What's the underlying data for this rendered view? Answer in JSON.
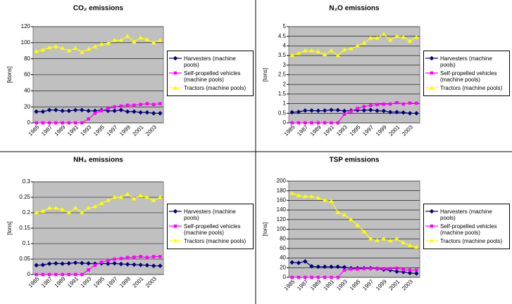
{
  "chart_data": [
    {
      "type": "line",
      "title": "CO₂ emissions",
      "ylabel": "[ktons]",
      "categories": [
        "1985",
        null,
        "1987",
        null,
        "1989",
        null,
        "1991",
        null,
        "1993",
        null,
        "1995",
        null,
        "1997",
        null,
        "1999",
        null,
        "2001",
        null,
        "2003",
        null
      ],
      "ylim": [
        0,
        120
      ],
      "yticks": [
        0,
        20,
        40,
        60,
        80,
        100,
        120
      ],
      "grid": true,
      "series": [
        {
          "name": "Harvesters (machine pools)",
          "color": "#000080",
          "marker": "diamond",
          "values": [
            14,
            14,
            16,
            16,
            15,
            15,
            16,
            16,
            15,
            15,
            16,
            15,
            15,
            16,
            14,
            14,
            13,
            13,
            12,
            12
          ]
        },
        {
          "name": "Self-propelled vehicles (machine pools)",
          "color": "#ff00ff",
          "marker": "square",
          "values": [
            0,
            0,
            0,
            0,
            0,
            0,
            0,
            0,
            5,
            12,
            15,
            18,
            20,
            21,
            22,
            22,
            23,
            24,
            23,
            24
          ]
        },
        {
          "name": "Tractors (machine pools)",
          "color": "#ffff00",
          "marker": "triangle",
          "values": [
            89,
            91,
            94,
            95,
            93,
            90,
            93,
            88,
            92,
            95,
            98,
            99,
            103,
            103,
            108,
            101,
            106,
            104,
            100,
            103
          ]
        }
      ]
    },
    {
      "type": "line",
      "title": "N₂O emissions",
      "ylabel": "[tons]",
      "categories": [
        "1985",
        null,
        "1987",
        null,
        "1989",
        null,
        "1991",
        null,
        "1993",
        null,
        "1995",
        null,
        "1997",
        null,
        "1999",
        null,
        "2001",
        null,
        "2003",
        null
      ],
      "ylim": [
        0,
        5
      ],
      "yticks": [
        0,
        0.5,
        1,
        1.5,
        2,
        2.5,
        3,
        3.5,
        4,
        4.5,
        5
      ],
      "grid": true,
      "series": [
        {
          "name": "Harvesters (machine pools)",
          "color": "#000080",
          "marker": "diamond",
          "values": [
            0.55,
            0.57,
            0.64,
            0.64,
            0.63,
            0.64,
            0.67,
            0.66,
            0.62,
            0.64,
            0.66,
            0.65,
            0.67,
            0.63,
            0.62,
            0.56,
            0.56,
            0.54,
            0.5,
            0.5
          ]
        },
        {
          "name": "Self-propelled vehicles (machine pools)",
          "color": "#ff00ff",
          "marker": "square",
          "values": [
            0,
            0,
            0,
            0,
            0,
            0,
            0,
            0,
            0.45,
            0.6,
            0.75,
            0.85,
            0.9,
            0.95,
            0.97,
            0.98,
            1.05,
            0.98,
            1.03,
            1.02
          ]
        },
        {
          "name": "Tractors (machine pools)",
          "color": "#ffff00",
          "marker": "triangle",
          "values": [
            3.5,
            3.6,
            3.75,
            3.75,
            3.7,
            3.55,
            3.75,
            3.5,
            3.8,
            3.85,
            4.0,
            4.15,
            4.4,
            4.4,
            4.6,
            4.3,
            4.5,
            4.45,
            4.25,
            4.45
          ]
        }
      ]
    },
    {
      "type": "line",
      "title": "NH₃ emissions",
      "ylabel": "[tons]",
      "categories": [
        "1985",
        null,
        "1987",
        null,
        "1989",
        null,
        "1991",
        null,
        "1993",
        null,
        "1995",
        null,
        "1997",
        null,
        "1999",
        null,
        "2001",
        null,
        "2003",
        null
      ],
      "ylim": [
        0,
        0.3
      ],
      "yticks": [
        0,
        0.05,
        0.1,
        0.15,
        0.2,
        0.25,
        0.3
      ],
      "grid": true,
      "series": [
        {
          "name": "Harvesters (machine pools)",
          "color": "#000080",
          "marker": "diamond",
          "values": [
            0.03,
            0.031,
            0.035,
            0.036,
            0.035,
            0.036,
            0.038,
            0.037,
            0.036,
            0.035,
            0.036,
            0.035,
            0.036,
            0.034,
            0.033,
            0.032,
            0.031,
            0.03,
            0.028,
            0.028
          ]
        },
        {
          "name": "Self-propelled vehicles (machine pools)",
          "color": "#ff00ff",
          "marker": "square",
          "values": [
            0,
            0,
            0,
            0,
            0,
            0,
            0,
            0,
            0.015,
            0.03,
            0.04,
            0.045,
            0.05,
            0.052,
            0.055,
            0.056,
            0.058,
            0.055,
            0.058,
            0.058
          ]
        },
        {
          "name": "Tractors (machine pools)",
          "color": "#ffff00",
          "marker": "triangle",
          "values": [
            0.2,
            0.205,
            0.215,
            0.215,
            0.21,
            0.2,
            0.215,
            0.2,
            0.215,
            0.22,
            0.23,
            0.24,
            0.25,
            0.25,
            0.26,
            0.245,
            0.255,
            0.25,
            0.24,
            0.25
          ]
        }
      ]
    },
    {
      "type": "line",
      "title": "TSP emissions",
      "ylabel": "[tons]",
      "categories": [
        "1985",
        null,
        "1987",
        null,
        "1989",
        null,
        "1991",
        null,
        "1993",
        null,
        "1995",
        null,
        "1997",
        null,
        "1999",
        null,
        "2001",
        null,
        "2003",
        null
      ],
      "ylim": [
        0,
        200
      ],
      "yticks": [
        0,
        20,
        40,
        60,
        80,
        100,
        120,
        140,
        160,
        180,
        200
      ],
      "grid": true,
      "series": [
        {
          "name": "Harvesters (machine pools)",
          "color": "#000080",
          "marker": "diamond",
          "values": [
            31,
            30,
            33,
            23,
            22,
            22,
            22,
            22,
            21,
            19,
            19,
            19,
            19,
            18,
            16,
            15,
            12,
            11,
            9,
            8
          ]
        },
        {
          "name": "Self-propelled vehicles (machine pools)",
          "color": "#ff00ff",
          "marker": "square",
          "values": [
            0,
            0,
            0,
            0,
            0,
            0,
            0,
            0,
            15,
            17,
            17,
            18,
            18,
            18,
            18,
            18,
            19,
            16,
            15,
            15
          ]
        },
        {
          "name": "Tractors (machine pools)",
          "color": "#ffff00",
          "marker": "triangle",
          "values": [
            175,
            170,
            168,
            168,
            165,
            160,
            158,
            135,
            130,
            120,
            108,
            95,
            80,
            77,
            80,
            76,
            80,
            72,
            66,
            63
          ]
        }
      ]
    }
  ]
}
